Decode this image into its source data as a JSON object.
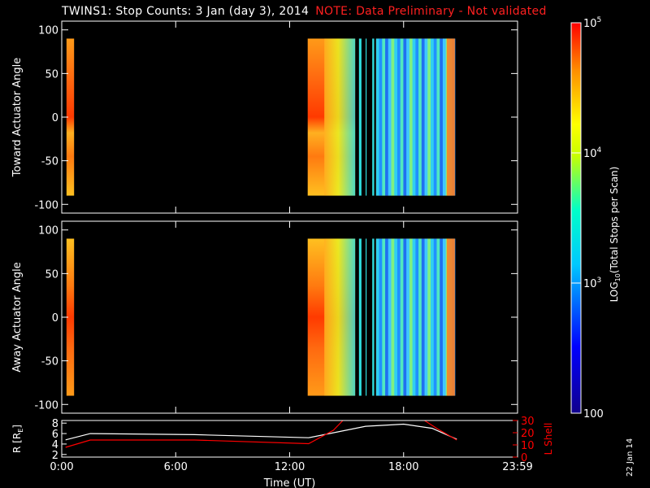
{
  "title": {
    "main": "TWINS1: Stop Counts:  3 Jan (day   3), 2014",
    "note": "NOTE: Data Preliminary - Not validated"
  },
  "date_stamp": "22 Jan 14",
  "colors": {
    "background": "#000000",
    "axes": "#ffffff",
    "note_text": "#ff2020",
    "r_line": "#ffffff",
    "lshell_line": "#ff0000"
  },
  "chart_data": [
    {
      "type": "heatmap",
      "name": "toward-panel",
      "ylabel": "Toward Actuator Angle",
      "ylim": [
        -110,
        110
      ],
      "yticks": [
        100,
        50,
        0,
        -50,
        -100
      ],
      "xlim": [
        0,
        24
      ],
      "data_blocks_hours": [
        [
          0.25,
          0.65
        ],
        [
          12.95,
          15.45
        ],
        [
          15.65,
          15.78
        ],
        [
          16.0,
          16.05
        ],
        [
          16.35,
          16.45
        ],
        [
          16.55,
          20.7
        ]
      ],
      "angle_range": [
        -90,
        90
      ]
    },
    {
      "type": "heatmap",
      "name": "away-panel",
      "ylabel": "Away Actuator Angle",
      "ylim": [
        -110,
        110
      ],
      "yticks": [
        100,
        50,
        0,
        -50,
        -100
      ],
      "xlim": [
        0,
        24
      ],
      "data_blocks_hours": [
        [
          0.25,
          0.65
        ],
        [
          12.95,
          15.45
        ],
        [
          15.65,
          15.78
        ],
        [
          16.0,
          16.05
        ],
        [
          16.35,
          16.45
        ],
        [
          16.55,
          20.7
        ]
      ],
      "angle_range": [
        -90,
        90
      ]
    },
    {
      "type": "line",
      "name": "ephemeris-panel",
      "ylabel_left": "R [R",
      "ylabel_left_sub": "E",
      "ylabel_left_end": "]",
      "ylabel_right": "L Shell",
      "ylim_left": [
        1.5,
        8.5
      ],
      "yticks_left": [
        8,
        6,
        4,
        2
      ],
      "ylim_right": [
        0,
        30
      ],
      "yticks_right": [
        30,
        20,
        10,
        0
      ],
      "xlabel": "Time (UT)",
      "xlim": [
        0,
        24
      ],
      "xticks": [
        {
          "v": 0,
          "label": "0:00"
        },
        {
          "v": 6,
          "label": "6:00"
        },
        {
          "v": 12,
          "label": "12:00"
        },
        {
          "v": 18,
          "label": "18:00"
        },
        {
          "v": 24,
          "label": "23:59"
        }
      ],
      "series": [
        {
          "axis": "left",
          "x": [
            0.2,
            1.5,
            7,
            13,
            16,
            18,
            19.5,
            20.8
          ],
          "y": [
            4.8,
            6.0,
            5.8,
            5.2,
            7.4,
            7.8,
            7.0,
            4.9
          ]
        },
        {
          "axis": "right",
          "x": [
            0.2,
            1.5,
            7,
            13,
            14.3,
            14.8
          ],
          "y": [
            8,
            14,
            14,
            11,
            22,
            30
          ]
        },
        {
          "axis": "right",
          "x": [
            19.1,
            19.8,
            20.8
          ],
          "y": [
            30,
            23,
            14
          ]
        }
      ]
    }
  ],
  "colorbar": {
    "label_main": "LOG",
    "label_sub": "10",
    "label_rest": "(Total Stops per Scan)",
    "ticks": [
      {
        "base": "10",
        "exp": "5",
        "value": 100000
      },
      {
        "base": "10",
        "exp": "4",
        "value": 10000
      },
      {
        "base": "10",
        "exp": "3",
        "value": 1000
      },
      {
        "base": "100",
        "exp": "",
        "value": 100
      }
    ],
    "range": [
      100,
      100000
    ]
  }
}
